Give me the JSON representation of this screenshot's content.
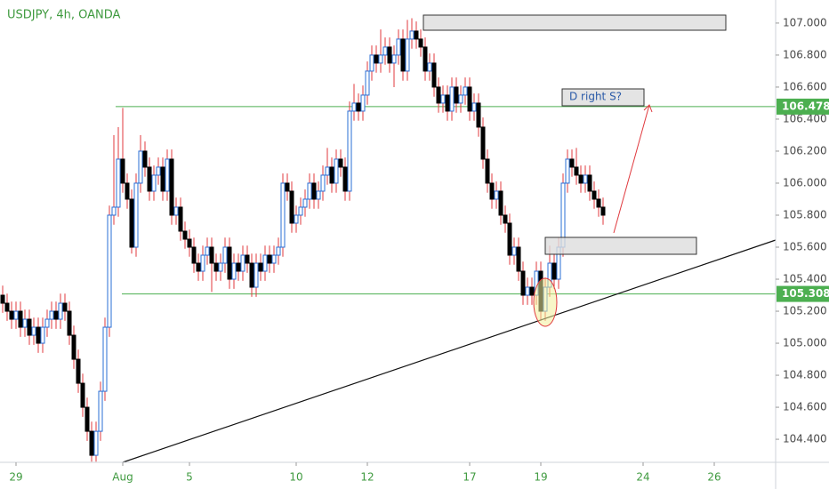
{
  "chart_data": {
    "type": "candlestick",
    "title": "USDJPY, 4h, OANDA",
    "annotation": "D right S?",
    "up_color": "#ffffff",
    "up_border": "#2a6fd6",
    "down_color": "#000000",
    "wick_color": "#e0393e",
    "level_color": "#4caf50",
    "xlim": [
      -0.6,
      173.8
    ],
    "ylim": [
      104.256,
      107.144
    ],
    "xticks": [
      {
        "value": 3,
        "label": "29"
      },
      {
        "value": 27,
        "label": "Aug"
      },
      {
        "value": 42,
        "label": "5"
      },
      {
        "value": 66,
        "label": "10"
      },
      {
        "value": 82,
        "label": "12"
      },
      {
        "value": 105,
        "label": "17"
      },
      {
        "value": 121,
        "label": "19"
      },
      {
        "value": 144,
        "label": "24"
      },
      {
        "value": 160,
        "label": "26"
      }
    ],
    "yticks": [
      {
        "value": 104.4,
        "label": "104.400"
      },
      {
        "value": 104.6,
        "label": "104.600"
      },
      {
        "value": 104.8,
        "label": "104.800"
      },
      {
        "value": 105.0,
        "label": "105.000"
      },
      {
        "value": 105.2,
        "label": "105.200"
      },
      {
        "value": 105.4,
        "label": "105.400"
      },
      {
        "value": 105.6,
        "label": "105.600"
      },
      {
        "value": 105.8,
        "label": "105.800"
      },
      {
        "value": 106.0,
        "label": "106.000"
      },
      {
        "value": 106.2,
        "label": "106.200"
      },
      {
        "value": 106.4,
        "label": "106.400"
      },
      {
        "value": 106.6,
        "label": "106.600"
      },
      {
        "value": 106.8,
        "label": "106.800"
      },
      {
        "value": 107.0,
        "label": "107.000"
      }
    ],
    "levels": [
      {
        "value": 106.478,
        "label": "106.478"
      },
      {
        "value": 105.308,
        "label": "105.308"
      }
    ],
    "open": [
      105.3,
      105.25,
      105.2,
      105.15,
      105.2,
      105.1,
      105.15,
      105.05,
      105.1,
      105.0,
      105.1,
      105.15,
      105.2,
      105.15,
      105.25,
      105.2,
      105.05,
      104.9,
      104.75,
      104.6,
      104.45,
      104.3,
      104.45,
      104.7,
      105.1,
      105.8,
      105.85,
      106.15,
      106.0,
      105.9,
      105.6,
      106.0,
      106.2,
      106.1,
      105.95,
      106.05,
      106.1,
      105.95,
      106.15,
      105.8,
      105.85,
      105.7,
      105.65,
      105.6,
      105.5,
      105.45,
      105.55,
      105.6,
      105.5,
      105.45,
      105.5,
      105.6,
      105.4,
      105.5,
      105.45,
      105.55,
      105.5,
      105.35,
      105.5,
      105.45,
      105.55,
      105.5,
      105.55,
      105.6,
      106.0,
      105.95,
      105.75,
      105.8,
      105.85,
      105.9,
      106.0,
      105.9,
      105.95,
      106.05,
      106.1,
      106.0,
      106.15,
      106.1,
      105.95,
      106.45,
      106.5,
      106.45,
      106.55,
      106.7,
      106.8,
      106.75,
      106.8,
      106.85,
      106.75,
      106.8,
      106.9,
      106.7,
      106.9,
      106.95,
      106.9,
      106.85,
      106.7,
      106.75,
      106.6,
      106.5,
      106.55,
      106.45,
      106.6,
      106.5,
      106.55,
      106.6,
      106.45,
      106.5,
      106.35,
      106.15,
      106.0,
      105.9,
      105.95,
      105.8,
      105.75,
      105.55,
      105.6,
      105.45,
      105.3,
      105.35,
      105.3,
      105.45,
      105.2,
      105.35,
      105.5,
      105.4,
      105.6,
      106.0,
      106.15,
      106.1,
      106.05,
      106.0,
      106.05,
      105.95,
      105.9,
      105.85
    ],
    "high": [
      105.36,
      105.31,
      105.26,
      105.26,
      105.26,
      105.21,
      105.21,
      105.16,
      105.16,
      105.16,
      105.21,
      105.26,
      105.26,
      105.31,
      105.31,
      105.26,
      105.11,
      104.96,
      104.81,
      104.66,
      104.51,
      104.51,
      104.76,
      105.16,
      105.86,
      106.3,
      106.35,
      106.47,
      106.06,
      105.96,
      106.06,
      106.3,
      106.26,
      106.16,
      106.11,
      106.16,
      106.16,
      106.21,
      106.21,
      105.91,
      105.91,
      105.76,
      105.71,
      105.66,
      105.56,
      105.61,
      105.66,
      105.66,
      105.56,
      105.56,
      105.66,
      105.66,
      105.56,
      105.56,
      105.61,
      105.61,
      105.56,
      105.56,
      105.56,
      105.61,
      105.61,
      105.61,
      105.66,
      106.06,
      106.06,
      106.01,
      105.86,
      105.91,
      105.96,
      106.06,
      106.06,
      106.01,
      106.11,
      106.22,
      106.16,
      106.21,
      106.21,
      106.16,
      106.51,
      106.62,
      106.56,
      106.61,
      106.76,
      106.86,
      106.86,
      106.96,
      106.91,
      106.91,
      106.86,
      106.96,
      106.96,
      107.02,
      107.03,
      107.01,
      106.96,
      106.91,
      106.81,
      106.81,
      106.66,
      106.61,
      106.61,
      106.66,
      106.66,
      106.61,
      106.66,
      106.66,
      106.56,
      106.56,
      106.41,
      106.21,
      106.06,
      106.01,
      106.01,
      105.86,
      105.81,
      105.66,
      105.66,
      105.51,
      105.41,
      105.41,
      105.51,
      105.51,
      105.41,
      105.61,
      105.56,
      105.66,
      106.06,
      106.21,
      106.21,
      106.22,
      106.11,
      106.11,
      106.11,
      106.01,
      105.96,
      105.91
    ],
    "low": [
      105.19,
      105.14,
      105.09,
      105.09,
      105.04,
      105.04,
      104.99,
      104.99,
      104.94,
      104.94,
      105.04,
      105.09,
      105.09,
      105.09,
      105.14,
      104.99,
      104.84,
      104.69,
      104.54,
      104.39,
      104.26,
      104.26,
      104.39,
      104.64,
      105.04,
      105.74,
      105.79,
      105.94,
      105.84,
      105.56,
      105.54,
      105.94,
      106.04,
      105.89,
      105.89,
      105.99,
      105.89,
      105.89,
      105.74,
      105.74,
      105.64,
      105.59,
      105.54,
      105.44,
      105.39,
      105.39,
      105.49,
      105.32,
      105.39,
      105.39,
      105.44,
      105.34,
      105.34,
      105.39,
      105.39,
      105.44,
      105.29,
      105.29,
      105.39,
      105.39,
      105.44,
      105.44,
      105.49,
      105.54,
      105.89,
      105.69,
      105.69,
      105.74,
      105.79,
      105.84,
      105.84,
      105.84,
      105.89,
      105.99,
      105.94,
      105.94,
      106.04,
      105.89,
      105.89,
      106.39,
      106.39,
      106.39,
      106.49,
      106.64,
      106.69,
      106.69,
      106.74,
      106.69,
      106.6,
      106.74,
      106.64,
      106.64,
      106.84,
      106.84,
      106.79,
      106.64,
      106.64,
      106.54,
      106.44,
      106.44,
      106.39,
      106.39,
      106.44,
      106.44,
      106.49,
      106.39,
      106.39,
      106.29,
      106.09,
      105.94,
      105.84,
      105.84,
      105.74,
      105.69,
      105.49,
      105.49,
      105.39,
      105.24,
      105.24,
      105.24,
      105.24,
      105.14,
      105.14,
      105.29,
      105.34,
      105.34,
      105.54,
      105.94,
      106.04,
      105.99,
      105.94,
      105.94,
      105.89,
      105.84,
      105.79,
      105.74
    ],
    "close": [
      105.25,
      105.2,
      105.15,
      105.2,
      105.1,
      105.15,
      105.05,
      105.1,
      105.0,
      105.1,
      105.15,
      105.2,
      105.15,
      105.25,
      105.2,
      105.05,
      104.9,
      104.75,
      104.6,
      104.45,
      104.3,
      104.45,
      104.7,
      105.1,
      105.8,
      105.85,
      106.15,
      106.0,
      105.9,
      105.6,
      106.0,
      106.2,
      106.1,
      105.95,
      106.05,
      106.1,
      105.95,
      106.15,
      105.8,
      105.85,
      105.7,
      105.65,
      105.6,
      105.5,
      105.45,
      105.55,
      105.6,
      105.5,
      105.45,
      105.5,
      105.6,
      105.4,
      105.5,
      105.45,
      105.55,
      105.5,
      105.35,
      105.5,
      105.45,
      105.55,
      105.5,
      105.55,
      105.6,
      106.0,
      105.95,
      105.75,
      105.8,
      105.85,
      105.9,
      106.0,
      105.9,
      105.95,
      106.05,
      106.1,
      106.0,
      106.15,
      106.1,
      105.95,
      106.45,
      106.5,
      106.45,
      106.55,
      106.7,
      106.8,
      106.75,
      106.8,
      106.85,
      106.75,
      106.8,
      106.9,
      106.7,
      106.9,
      106.95,
      106.9,
      106.85,
      106.7,
      106.75,
      106.6,
      106.5,
      106.55,
      106.45,
      106.6,
      106.5,
      106.55,
      106.6,
      106.45,
      106.5,
      106.35,
      106.15,
      106.0,
      105.9,
      105.95,
      105.8,
      105.75,
      105.55,
      105.6,
      105.45,
      105.3,
      105.35,
      105.3,
      105.45,
      105.2,
      105.35,
      105.5,
      105.4,
      105.6,
      106.0,
      106.15,
      106.1,
      106.05,
      106.0,
      106.05,
      105.95,
      105.9,
      105.85,
      105.8
    ]
  }
}
